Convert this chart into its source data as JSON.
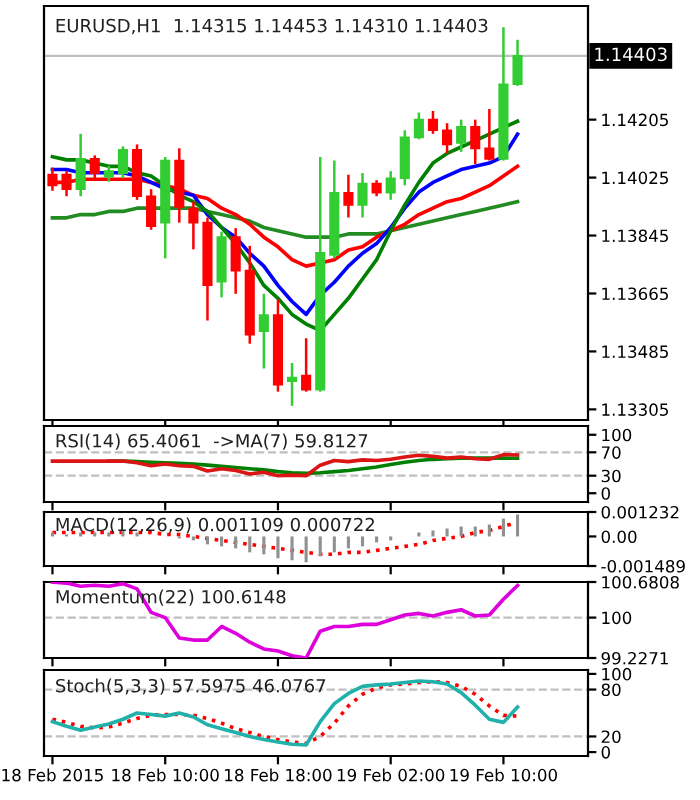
{
  "chart_data": [
    {
      "type": "candlestick",
      "title": "EURUSD,H1  1.14315 1.14453 1.14310 1.14403",
      "categories": [
        null,
        null,
        null,
        null,
        null,
        null,
        null,
        null,
        null,
        null,
        null,
        null,
        null,
        null,
        null,
        null,
        null,
        null,
        null,
        null,
        null,
        null,
        null,
        null,
        null,
        null,
        null,
        null,
        null,
        null,
        null,
        null,
        null,
        null
      ],
      "ohlc": [
        [
          1.14034,
          1.14056,
          1.13984,
          1.14001
        ],
        [
          1.14034,
          1.14045,
          1.13967,
          1.13989
        ],
        [
          1.13989,
          1.14161,
          1.13967,
          1.14083
        ],
        [
          1.14083,
          1.14094,
          1.14023,
          1.14039
        ],
        [
          1.14028,
          1.14061,
          1.14012,
          1.14045
        ],
        [
          1.14039,
          1.14122,
          1.14023,
          1.14111
        ],
        [
          1.14111,
          1.14128,
          1.13956,
          1.13967
        ],
        [
          1.13967,
          1.13989,
          1.13863,
          1.13874
        ],
        [
          1.13885,
          1.14089,
          1.13774,
          1.14078
        ],
        [
          1.14078,
          1.14116,
          1.13885,
          1.13934
        ],
        [
          1.13929,
          1.13951,
          1.13802,
          1.13885
        ],
        [
          1.13885,
          1.13901,
          1.13581,
          1.13691
        ],
        [
          1.13702,
          1.13857,
          1.13653,
          1.1384
        ],
        [
          1.1384,
          1.13868,
          1.13664,
          1.13736
        ],
        [
          1.13736,
          1.13813,
          1.13509,
          1.13537
        ],
        [
          1.13548,
          1.13664,
          1.13432,
          1.13598
        ],
        [
          1.13598,
          1.13647,
          1.1336,
          1.13382
        ],
        [
          1.13393,
          1.13449,
          1.13316,
          1.13404
        ],
        [
          1.1341,
          1.13526,
          1.1336,
          1.13366
        ],
        [
          1.13366,
          1.14089,
          1.1336,
          1.13791
        ],
        [
          1.13785,
          1.14078,
          1.13774,
          1.13978
        ],
        [
          1.13978,
          1.14034,
          1.13901,
          1.1394
        ],
        [
          1.1394,
          1.14039,
          1.13901,
          1.14006
        ],
        [
          1.14006,
          1.14017,
          1.13967,
          1.13978
        ],
        [
          1.13978,
          1.14045,
          1.13956,
          1.14023
        ],
        [
          1.14023,
          1.14172,
          1.14001,
          1.1415
        ],
        [
          1.1415,
          1.14227,
          1.14144,
          1.14205
        ],
        [
          1.14205,
          1.14232,
          1.14161,
          1.14172
        ],
        [
          1.14172,
          1.14194,
          1.141,
          1.14128
        ],
        [
          1.14133,
          1.14205,
          1.14105,
          1.14183
        ],
        [
          1.14183,
          1.14205,
          1.14067,
          1.14116
        ],
        [
          1.14116,
          1.14238,
          1.14078,
          1.14083
        ],
        [
          1.14083,
          1.14492,
          1.14078,
          1.14315
        ],
        [
          1.14315,
          1.14453,
          1.1431,
          1.14403
        ]
      ],
      "colors": [
        "#ff0000",
        "#ff0000",
        "#32cd32",
        "#ff0000",
        "#32cd32",
        "#32cd32",
        "#ff0000",
        "#ff0000",
        "#32cd32",
        "#ff0000",
        "#ff0000",
        "#ff0000",
        "#32cd32",
        "#ff0000",
        "#ff0000",
        "#32cd32",
        "#ff0000",
        "#32cd32",
        "#ff0000",
        "#32cd32",
        "#32cd32",
        "#ff0000",
        "#32cd32",
        "#ff0000",
        "#32cd32",
        "#32cd32",
        "#32cd32",
        "#ff0000",
        "#ff0000",
        "#32cd32",
        "#ff0000",
        "#ff0000",
        "#32cd32",
        "#32cd32"
      ],
      "series": [
        {
          "type": "line",
          "color": "#228b22",
          "values": [
            1.139,
            1.139,
            1.1391,
            1.1391,
            1.1392,
            1.1392,
            1.1393,
            1.1393,
            1.1393,
            1.1393,
            1.1393,
            1.1392,
            1.1391,
            1.139,
            1.1389,
            1.1387,
            1.1386,
            1.1385,
            1.1384,
            1.1384,
            1.1384,
            1.1385,
            1.1385,
            1.1385,
            1.1386,
            1.1387,
            1.1388,
            1.1389,
            1.139,
            1.1391,
            1.1392,
            1.1393,
            1.1394,
            1.1395
          ]
        },
        {
          "type": "line",
          "color": "#ff0000",
          "values": [
            1.1401,
            1.1401,
            1.1402,
            1.1402,
            1.1402,
            1.1402,
            1.1402,
            1.1401,
            1.14,
            1.1399,
            1.1397,
            1.1396,
            1.1393,
            1.1391,
            1.1388,
            1.1384,
            1.1381,
            1.1377,
            1.1375,
            1.1376,
            1.1377,
            1.138,
            1.1381,
            1.1384,
            1.1386,
            1.1388,
            1.1391,
            1.1393,
            1.1395,
            1.1396,
            1.1398,
            1.14,
            1.1403,
            1.1406
          ]
        },
        {
          "type": "line",
          "color": "#0000ff",
          "values": [
            1.1405,
            1.1405,
            1.1404,
            1.1404,
            1.1404,
            1.1404,
            1.1403,
            1.1401,
            1.1399,
            1.1398,
            1.1397,
            1.1391,
            1.1387,
            1.1384,
            1.1379,
            1.1375,
            1.1369,
            1.1364,
            1.136,
            1.1366,
            1.137,
            1.1375,
            1.1379,
            1.1382,
            1.1387,
            1.1393,
            1.1398,
            1.1401,
            1.1403,
            1.1405,
            1.1406,
            1.1407,
            1.1409,
            1.1416
          ]
        },
        {
          "type": "line",
          "color": "#008000",
          "values": [
            1.1409,
            1.1408,
            1.1408,
            1.1407,
            1.1406,
            1.1406,
            1.1404,
            1.1403,
            1.14,
            1.1397,
            1.1395,
            1.1392,
            1.1387,
            1.1382,
            1.1376,
            1.1369,
            1.1365,
            1.136,
            1.1357,
            1.1355,
            1.136,
            1.1365,
            1.1371,
            1.1377,
            1.1386,
            1.1394,
            1.1401,
            1.1407,
            1.141,
            1.1412,
            1.1414,
            1.1416,
            1.1418,
            1.142
          ]
        }
      ],
      "ylim": [
        1.13272,
        1.14558
      ],
      "yticks": [
        1.14205,
        1.14025,
        1.13845,
        1.13665,
        1.13485,
        1.13305
      ],
      "tick_labels": "y",
      "ref_lines": [
        {
          "axis": "y",
          "value": 1.14403,
          "label": "1.14403",
          "color": "#c0c0c0"
        }
      ]
    },
    {
      "type": "line",
      "title": "RSI(14) 65.4061  ->MA(7) 59.8127",
      "categories": [
        null,
        null,
        null,
        null,
        null,
        null,
        null,
        null,
        null,
        null,
        null,
        null,
        null,
        null,
        null,
        null,
        null,
        null,
        null,
        null,
        null,
        null,
        null,
        null,
        null,
        null,
        null,
        null,
        null,
        null,
        null,
        null,
        null,
        null
      ],
      "series": [
        {
          "color": "#008000",
          "values": [
            null,
            null,
            null,
            null,
            55,
            55,
            54,
            53,
            52,
            51,
            50,
            48,
            46,
            44,
            42,
            40,
            37,
            35,
            34,
            35,
            37,
            39,
            42,
            45,
            49,
            53,
            56,
            58,
            59,
            60,
            60,
            60,
            60,
            59.8127
          ]
        },
        {
          "color": "#dc1414",
          "values": [
            55,
            55,
            55,
            55,
            55,
            55,
            52,
            47,
            50,
            47,
            46,
            38,
            42,
            39,
            33,
            36,
            30,
            31,
            30,
            48,
            56,
            54,
            57,
            56,
            58,
            62,
            65,
            63,
            60,
            62,
            59,
            58,
            66,
            65.4061
          ]
        }
      ],
      "ylim": [
        -15,
        115
      ],
      "yticks": [
        100,
        70,
        30,
        0
      ],
      "tick_labels": "y",
      "ref_lines": [
        {
          "axis": "y",
          "value": 70,
          "color": "#c0c0c0",
          "line_style": "dashed"
        },
        {
          "axis": "y",
          "value": 30,
          "color": "#c0c0c0",
          "line_style": "dashed"
        }
      ]
    },
    {
      "type": "bar",
      "title": "MACD(12,26,9) 0.001109 0.000722",
      "categories": [
        null,
        null,
        null,
        null,
        null,
        null,
        null,
        null,
        null,
        null,
        null,
        null,
        null,
        null,
        null,
        null,
        null,
        null,
        null,
        null,
        null,
        null,
        null,
        null,
        null,
        null,
        null,
        null,
        null,
        null,
        null,
        null,
        null,
        null
      ],
      "series": [
        {
          "type": "bar",
          "color": "#909090",
          "values": [
            0.0002,
            0.0001,
            0.0002,
            0.0002,
            0.0002,
            0.0003,
            0.0002,
            0.0,
            0.0,
            -0.0001,
            -0.0002,
            -0.0004,
            -0.0005,
            -0.0006,
            -0.0008,
            -0.0009,
            -0.0011,
            -0.0012,
            -0.0013,
            -0.001,
            -0.0008,
            -0.0006,
            -0.0005,
            -0.0003,
            -0.0002,
            0.0,
            0.0002,
            0.0003,
            0.0004,
            0.0005,
            0.0005,
            0.0006,
            0.0009,
            0.001109
          ]
        },
        {
          "type": "line",
          "color": "#ff0000",
          "line_style": "dotted",
          "values": [
            0.0002,
            0.0002,
            0.0002,
            0.0002,
            0.0002,
            0.0002,
            0.0002,
            0.0002,
            0.0001,
            0.0001,
            0.0,
            -0.0001,
            -0.0002,
            -0.0003,
            -0.0004,
            -0.0005,
            -0.0006,
            -0.0007,
            -0.0008,
            -0.0009,
            -0.0009,
            -0.0008,
            -0.0008,
            -0.0007,
            -0.0006,
            -0.0005,
            -0.0004,
            -0.0002,
            -0.0001,
            0.0,
            0.0002,
            0.0003,
            0.0005,
            0.000722
          ]
        }
      ],
      "ylim": [
        -0.001489,
        0.001232
      ],
      "yticks": [
        0.001232,
        {
          "value": 0,
          "label": "0.00"
        },
        -0.001489
      ],
      "tick_labels": "y"
    },
    {
      "type": "line",
      "title": "Momentum(22) 100.6148",
      "categories": [
        null,
        null,
        null,
        null,
        null,
        null,
        null,
        null,
        null,
        null,
        null,
        null,
        null,
        null,
        null,
        null,
        null,
        null,
        null,
        null,
        null,
        null,
        null,
        null,
        null,
        null,
        null,
        null,
        null,
        null,
        null,
        null,
        null,
        null
      ],
      "series": [
        {
          "color": "#dd00dd",
          "values": [
            100.6808,
            100.66,
            100.6,
            100.62,
            100.6,
            100.65,
            100.55,
            100.1,
            100.0,
            99.61,
            99.57,
            99.57,
            99.83,
            99.7,
            99.53,
            99.4,
            99.36,
            99.27,
            99.2271,
            99.74,
            99.83,
            99.83,
            99.87,
            99.87,
            99.96,
            100.05,
            100.08,
            100.03,
            100.1,
            100.15,
            100.03,
            100.05,
            100.35,
            100.6148
          ]
        }
      ],
      "ylim": [
        99.2271,
        100.6808
      ],
      "yticks": [
        100.6808,
        100,
        99.2271
      ],
      "tick_labels": "y",
      "ref_lines": [
        {
          "axis": "y",
          "value": 100,
          "color": "#c0c0c0",
          "line_style": "dashed"
        }
      ]
    },
    {
      "type": "line",
      "title": "Stoch(5,3,3) 57.5975 46.0767",
      "categories": [
        "18 Feb 2015",
        null,
        null,
        null,
        null,
        null,
        null,
        null,
        "18 Feb 10:00",
        null,
        null,
        null,
        null,
        null,
        null,
        null,
        "18 Feb 18:00",
        null,
        null,
        null,
        null,
        null,
        null,
        null,
        "19 Feb 02:00",
        null,
        null,
        null,
        null,
        null,
        null,
        null,
        "19 Feb 10:00",
        null
      ],
      "series": [
        {
          "color": "#ff0000",
          "line_style": "dotted",
          "values": [
            42,
            38,
            33,
            31,
            32,
            37,
            43,
            47,
            48,
            48,
            47,
            43,
            37,
            30,
            25,
            20,
            16,
            13,
            11,
            20,
            37,
            59,
            74,
            82,
            86,
            87,
            89,
            90,
            89,
            84,
            74,
            59,
            47,
            46.0767
          ]
        },
        {
          "color": "#20b2aa",
          "values": [
            39,
            33,
            28,
            32,
            36,
            42,
            50,
            48,
            46,
            50,
            45,
            35,
            30,
            25,
            20,
            16,
            13,
            10,
            9,
            39,
            62,
            75,
            84,
            86,
            87,
            89,
            91,
            90,
            87,
            76,
            60,
            42,
            38,
            57.5975
          ]
        }
      ],
      "ylim": [
        -5,
        105
      ],
      "yticks": [
        100,
        80,
        20,
        0
      ],
      "ref_lines": [
        {
          "axis": "y",
          "value": 80,
          "color": "#c0c0c0",
          "line_style": "dashed"
        },
        {
          "axis": "y",
          "value": 20,
          "color": "#c0c0c0",
          "line_style": "dashed"
        }
      ]
    }
  ]
}
